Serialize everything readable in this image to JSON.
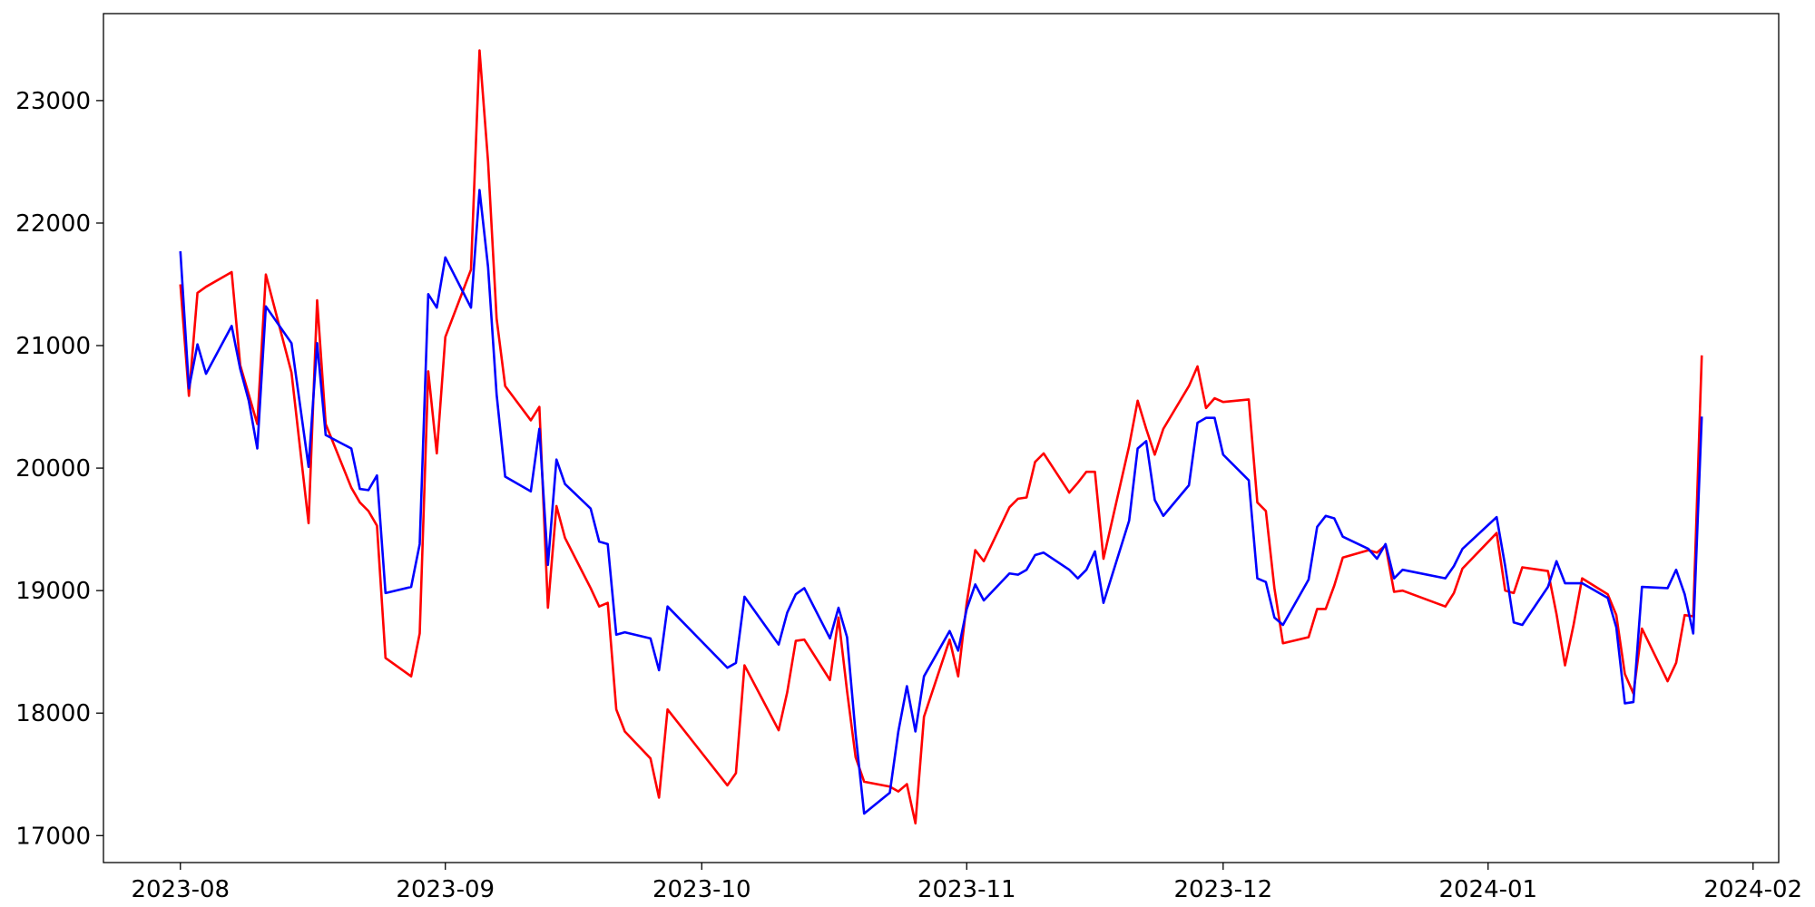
{
  "chart_data": {
    "type": "line",
    "x": [
      "2023-08-01",
      "2023-08-02",
      "2023-08-03",
      "2023-08-04",
      "2023-08-07",
      "2023-08-08",
      "2023-08-09",
      "2023-08-10",
      "2023-08-11",
      "2023-08-14",
      "2023-08-16",
      "2023-08-17",
      "2023-08-18",
      "2023-08-21",
      "2023-08-22",
      "2023-08-23",
      "2023-08-24",
      "2023-08-25",
      "2023-08-28",
      "2023-08-29",
      "2023-08-30",
      "2023-08-31",
      "2023-09-01",
      "2023-09-04",
      "2023-09-05",
      "2023-09-06",
      "2023-09-07",
      "2023-09-08",
      "2023-09-11",
      "2023-09-12",
      "2023-09-13",
      "2023-09-14",
      "2023-09-15",
      "2023-09-18",
      "2023-09-19",
      "2023-09-20",
      "2023-09-21",
      "2023-09-22",
      "2023-09-25",
      "2023-09-26",
      "2023-09-27",
      "2023-10-04",
      "2023-10-05",
      "2023-10-06",
      "2023-10-10",
      "2023-10-11",
      "2023-10-12",
      "2023-10-13",
      "2023-10-16",
      "2023-10-17",
      "2023-10-18",
      "2023-10-19",
      "2023-10-20",
      "2023-10-23",
      "2023-10-24",
      "2023-10-25",
      "2023-10-26",
      "2023-10-27",
      "2023-10-30",
      "2023-10-31",
      "2023-11-01",
      "2023-11-02",
      "2023-11-03",
      "2023-11-06",
      "2023-11-07",
      "2023-11-08",
      "2023-11-09",
      "2023-11-10",
      "2023-11-13",
      "2023-11-14",
      "2023-11-15",
      "2023-11-16",
      "2023-11-17",
      "2023-11-20",
      "2023-11-21",
      "2023-11-22",
      "2023-11-23",
      "2023-11-24",
      "2023-11-27",
      "2023-11-28",
      "2023-11-29",
      "2023-11-30",
      "2023-12-01",
      "2023-12-04",
      "2023-12-05",
      "2023-12-06",
      "2023-12-07",
      "2023-12-08",
      "2023-12-11",
      "2023-12-12",
      "2023-12-13",
      "2023-12-14",
      "2023-12-15",
      "2023-12-18",
      "2023-12-19",
      "2023-12-20",
      "2023-12-21",
      "2023-12-22",
      "2023-12-27",
      "2023-12-28",
      "2023-12-29",
      "2024-01-02",
      "2024-01-03",
      "2024-01-04",
      "2024-01-05",
      "2024-01-08",
      "2024-01-09",
      "2024-01-10",
      "2024-01-11",
      "2024-01-12",
      "2024-01-15",
      "2024-01-16",
      "2024-01-17",
      "2024-01-18",
      "2024-01-19",
      "2024-01-22",
      "2024-01-23",
      "2024-01-24",
      "2024-01-25",
      "2024-01-26"
    ],
    "series": [
      {
        "color": "red",
        "values": [
          21500,
          20590,
          21430,
          21480,
          21600,
          20840,
          20600,
          20360,
          21580,
          20780,
          19550,
          21370,
          20360,
          19840,
          19720,
          19650,
          19530,
          18450,
          18300,
          18650,
          20790,
          20120,
          21070,
          21620,
          23410,
          22500,
          21220,
          20670,
          20390,
          20500,
          18860,
          19690,
          19430,
          19020,
          18870,
          18900,
          18030,
          17850,
          17630,
          17310,
          18030,
          17410,
          17510,
          18390,
          17860,
          18170,
          18590,
          18600,
          18270,
          18780,
          18180,
          17640,
          17440,
          17400,
          17360,
          17420,
          17100,
          17970,
          18600,
          18300,
          18900,
          19330,
          19240,
          19680,
          19750,
          19760,
          20050,
          20120,
          19800,
          19880,
          19970,
          19970,
          19260,
          20180,
          20550,
          20320,
          20110,
          20320,
          20670,
          20830,
          20490,
          20570,
          20540,
          20560,
          19720,
          19650,
          19020,
          18570,
          18620,
          18850,
          18850,
          19040,
          19270,
          19330,
          19310,
          19370,
          18990,
          19000,
          18870,
          18980,
          19180,
          19470,
          19000,
          18980,
          19190,
          19160,
          18810,
          18390,
          18720,
          19100,
          18970,
          18800,
          18320,
          18160,
          18690,
          18260,
          18410,
          18800,
          18790,
          20920
        ]
      },
      {
        "color": "blue",
        "values": [
          21770,
          20650,
          21010,
          20770,
          21160,
          20810,
          20550,
          20160,
          21320,
          21020,
          20010,
          21020,
          20270,
          20160,
          19830,
          19820,
          19940,
          18980,
          19030,
          19380,
          21420,
          21310,
          21720,
          21310,
          22270,
          21640,
          20600,
          19930,
          19810,
          20320,
          19210,
          20070,
          19870,
          19670,
          19400,
          19380,
          18640,
          18660,
          18610,
          18350,
          18870,
          18370,
          18410,
          18950,
          18560,
          18820,
          18970,
          19020,
          18610,
          18860,
          18620,
          17830,
          17180,
          17350,
          17850,
          18220,
          17850,
          18300,
          18670,
          18510,
          18850,
          19050,
          18920,
          19140,
          19130,
          19170,
          19290,
          19310,
          19170,
          19100,
          19170,
          19320,
          18900,
          19570,
          20160,
          20220,
          19740,
          19610,
          19860,
          20370,
          20410,
          20410,
          20110,
          19900,
          19100,
          19070,
          18780,
          18720,
          19090,
          19520,
          19610,
          19590,
          19440,
          19340,
          19260,
          19380,
          19100,
          19170,
          19100,
          19200,
          19340,
          19600,
          19200,
          18740,
          18720,
          19030,
          19240,
          19060,
          19060,
          19060,
          18940,
          18700,
          18080,
          18090,
          19030,
          19020,
          19170,
          18970,
          18650,
          20420
        ]
      }
    ],
    "xlim": [
      "2023-07-23",
      "2024-02-04"
    ],
    "xticks": [
      {
        "value": "2023-08-01",
        "label": "2023-08"
      },
      {
        "value": "2023-09-01",
        "label": "2023-09"
      },
      {
        "value": "2023-10-01",
        "label": "2023-10"
      },
      {
        "value": "2023-11-01",
        "label": "2023-11"
      },
      {
        "value": "2023-12-01",
        "label": "2023-12"
      },
      {
        "value": "2024-01-01",
        "label": "2024-01"
      },
      {
        "value": "2024-02-01",
        "label": "2024-02"
      }
    ],
    "ylim": [
      16780,
      23710
    ],
    "yticks": [
      17000,
      18000,
      19000,
      20000,
      21000,
      22000,
      23000
    ],
    "grid": false
  }
}
